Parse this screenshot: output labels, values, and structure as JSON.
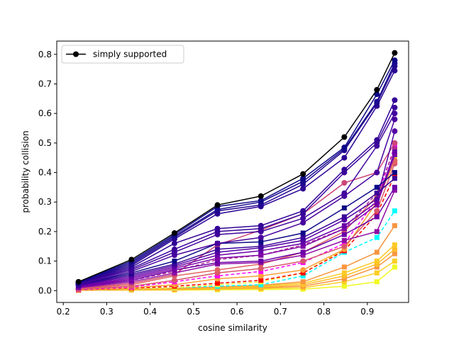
{
  "chart_data": {
    "type": "line",
    "title": "",
    "xlabel": "cosine similarity",
    "ylabel": "probability collision",
    "xlim": [
      0.185,
      0.995
    ],
    "ylim": [
      -0.04,
      0.845
    ],
    "x_ticks": [
      "0.2",
      "0.3",
      "0.4",
      "0.5",
      "0.6",
      "0.7",
      "0.8",
      "0.9"
    ],
    "y_ticks": [
      "0.0",
      "0.1",
      "0.2",
      "0.3",
      "0.4",
      "0.5",
      "0.6",
      "0.7",
      "0.8"
    ],
    "x_values": [
      0.235,
      0.357,
      0.456,
      0.555,
      0.655,
      0.752,
      0.847,
      0.922,
      0.963
    ],
    "legend": {
      "position": "upper-left",
      "label": "simply supported"
    },
    "highlight_series": {
      "name": "simply supported",
      "color": "#000000",
      "marker": "circle",
      "values": [
        0.03,
        0.105,
        0.195,
        0.29,
        0.32,
        0.395,
        0.52,
        0.68,
        0.805
      ]
    },
    "other_series": [
      {
        "color": "#0d0887",
        "marker": "circle",
        "dash": false,
        "values": [
          0.028,
          0.1,
          0.19,
          0.285,
          0.305,
          0.38,
          0.485,
          0.665,
          0.78
        ]
      },
      {
        "color": "#1a0a8f",
        "marker": "circle",
        "dash": false,
        "values": [
          0.027,
          0.095,
          0.185,
          0.275,
          0.3,
          0.37,
          0.48,
          0.64,
          0.77
        ]
      },
      {
        "color": "#240691",
        "marker": "circle",
        "dash": false,
        "values": [
          0.026,
          0.09,
          0.18,
          0.27,
          0.29,
          0.36,
          0.475,
          0.635,
          0.76
        ]
      },
      {
        "color": "#2c0594",
        "marker": "circle",
        "dash": false,
        "values": [
          0.025,
          0.085,
          0.175,
          0.26,
          0.285,
          0.345,
          0.45,
          0.625,
          0.745
        ]
      },
      {
        "color": "#330597",
        "marker": "circle",
        "dash": false,
        "values": [
          0.024,
          0.08,
          0.16,
          0.21,
          0.22,
          0.27,
          0.41,
          0.51,
          0.645
        ]
      },
      {
        "color": "#3a049a",
        "marker": "circle",
        "dash": false,
        "values": [
          0.023,
          0.075,
          0.14,
          0.2,
          0.21,
          0.26,
          0.4,
          0.5,
          0.62
        ]
      },
      {
        "color": "#41049d",
        "marker": "circle",
        "dash": false,
        "values": [
          0.022,
          0.07,
          0.13,
          0.19,
          0.2,
          0.245,
          0.33,
          0.49,
          0.6
        ]
      },
      {
        "color": "#48039f",
        "marker": "circle",
        "dash": false,
        "values": [
          0.02,
          0.065,
          0.12,
          0.16,
          0.18,
          0.23,
          0.32,
          0.4,
          0.58
        ]
      },
      {
        "color": "#0d0887",
        "marker": "square",
        "dash": false,
        "values": [
          0.02,
          0.06,
          0.1,
          0.16,
          0.165,
          0.195,
          0.28,
          0.35,
          0.4
        ]
      },
      {
        "color": "#3b049a",
        "marker": "square",
        "dash": false,
        "values": [
          0.018,
          0.055,
          0.09,
          0.14,
          0.15,
          0.18,
          0.25,
          0.33,
          0.38
        ]
      },
      {
        "color": "#5402a3",
        "marker": "circle",
        "dash": false,
        "values": [
          0.017,
          0.05,
          0.085,
          0.13,
          0.145,
          0.17,
          0.24,
          0.31,
          0.54
        ]
      },
      {
        "color": "#6a00a8",
        "marker": "square",
        "dash": false,
        "values": [
          0.015,
          0.045,
          0.08,
          0.12,
          0.135,
          0.16,
          0.22,
          0.3,
          0.47
        ]
      },
      {
        "color": "#7e03a8",
        "marker": "square",
        "dash": false,
        "values": [
          0.013,
          0.04,
          0.075,
          0.11,
          0.12,
          0.15,
          0.21,
          0.29,
          0.46
        ]
      },
      {
        "color": "#6a00a8",
        "marker": "square",
        "dash": false,
        "values": [
          0.012,
          0.035,
          0.07,
          0.095,
          0.1,
          0.13,
          0.19,
          0.25,
          0.35
        ]
      },
      {
        "color": "#8f0da4",
        "marker": "square",
        "dash": false,
        "values": [
          0.01,
          0.03,
          0.06,
          0.09,
          0.095,
          0.12,
          0.17,
          0.2,
          0.34
        ]
      },
      {
        "color": "#cc4778",
        "marker": "circle",
        "dash": false,
        "values": [
          0.008,
          0.025,
          0.055,
          0.155,
          0.205,
          0.26,
          0.365,
          0.4,
          0.5
        ]
      },
      {
        "color": "#e16462",
        "marker": "circle",
        "dash": false,
        "values": [
          0.007,
          0.02,
          0.05,
          0.07,
          0.09,
          0.13,
          0.2,
          0.32,
          0.44
        ]
      },
      {
        "color": "#b12a90",
        "marker": "square",
        "dash": true,
        "values": [
          0.015,
          0.035,
          0.065,
          0.105,
          0.12,
          0.155,
          0.21,
          0.33,
          0.48
        ]
      },
      {
        "color": "#d8576b",
        "marker": "circle",
        "dash": false,
        "values": [
          0.005,
          0.015,
          0.035,
          0.06,
          0.075,
          0.1,
          0.15,
          0.27,
          0.43
        ]
      },
      {
        "color": "#ff00ff",
        "marker": "square",
        "dash": true,
        "values": [
          0.004,
          0.012,
          0.03,
          0.05,
          0.065,
          0.095,
          0.16,
          0.31,
          0.49
        ]
      },
      {
        "color": "#fb9f3a",
        "marker": "circle",
        "dash": false,
        "values": [
          0.004,
          0.01,
          0.02,
          0.04,
          0.05,
          0.07,
          0.14,
          0.3,
          0.44
        ]
      },
      {
        "color": "#ff0000",
        "marker": "square",
        "dash": true,
        "values": [
          0.003,
          0.008,
          0.015,
          0.025,
          0.035,
          0.06,
          0.135,
          0.26,
          0.39
        ]
      },
      {
        "color": "#f0f921",
        "marker": "square",
        "dash": true,
        "values": [
          0.003,
          0.006,
          0.01,
          0.02,
          0.03,
          0.06,
          0.14,
          0.3,
          0.45
        ]
      },
      {
        "color": "#00ffff",
        "marker": "square",
        "dash": true,
        "values": [
          0.003,
          0.006,
          0.01,
          0.015,
          0.02,
          0.05,
          0.13,
          0.18,
          0.27
        ]
      },
      {
        "color": "#f89540",
        "marker": "square",
        "dash": false,
        "values": [
          0.002,
          0.005,
          0.008,
          0.012,
          0.018,
          0.03,
          0.08,
          0.13,
          0.22
        ]
      },
      {
        "color": "#fdca26",
        "marker": "square",
        "dash": false,
        "values": [
          0.002,
          0.004,
          0.006,
          0.01,
          0.015,
          0.025,
          0.06,
          0.1,
          0.155
        ]
      },
      {
        "color": "#febd2a",
        "marker": "circle",
        "dash": false,
        "values": [
          0.002,
          0.003,
          0.005,
          0.008,
          0.012,
          0.02,
          0.05,
          0.09,
          0.14
        ]
      },
      {
        "color": "#f89540",
        "marker": "square",
        "dash": false,
        "values": [
          0.001,
          0.003,
          0.004,
          0.007,
          0.01,
          0.015,
          0.04,
          0.08,
          0.125
        ]
      },
      {
        "color": "#fcce25",
        "marker": "square",
        "dash": false,
        "values": [
          0.001,
          0.002,
          0.003,
          0.005,
          0.007,
          0.01,
          0.03,
          0.06,
          0.1
        ]
      },
      {
        "color": "#f0f921",
        "marker": "square",
        "dash": false,
        "values": [
          0.001,
          0.002,
          0.002,
          0.003,
          0.004,
          0.005,
          0.015,
          0.03,
          0.08
        ]
      }
    ]
  }
}
